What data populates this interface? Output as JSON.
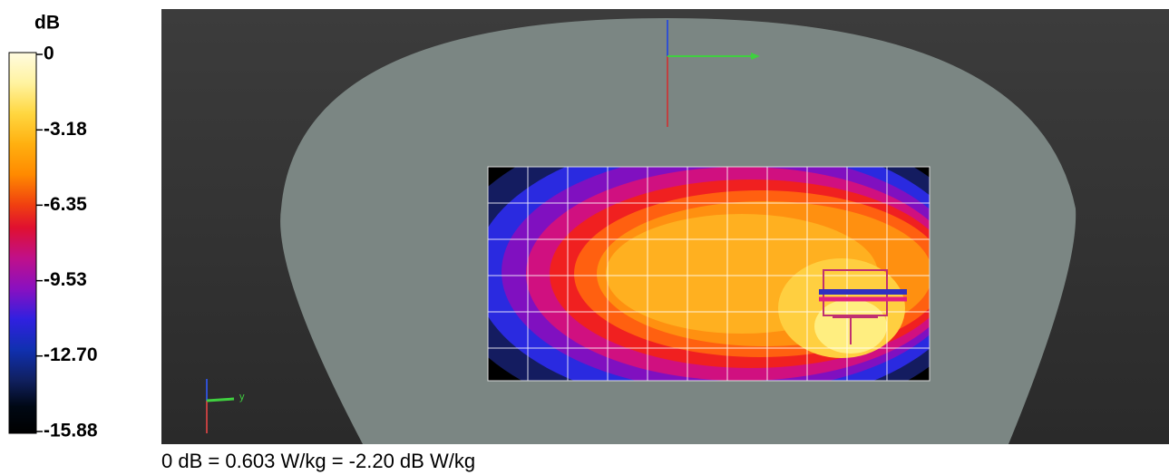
{
  "colorbar": {
    "unit": "dB",
    "ticks": [
      0,
      -3.18,
      -6.35,
      -9.53,
      {
        "value": -12.7,
        "label": "-12.70"
      },
      -15.88
    ]
  },
  "view": {
    "axis_label": "y"
  },
  "caption": "0 dB = 0.603 W/kg = -2.20 dB W/kg"
}
